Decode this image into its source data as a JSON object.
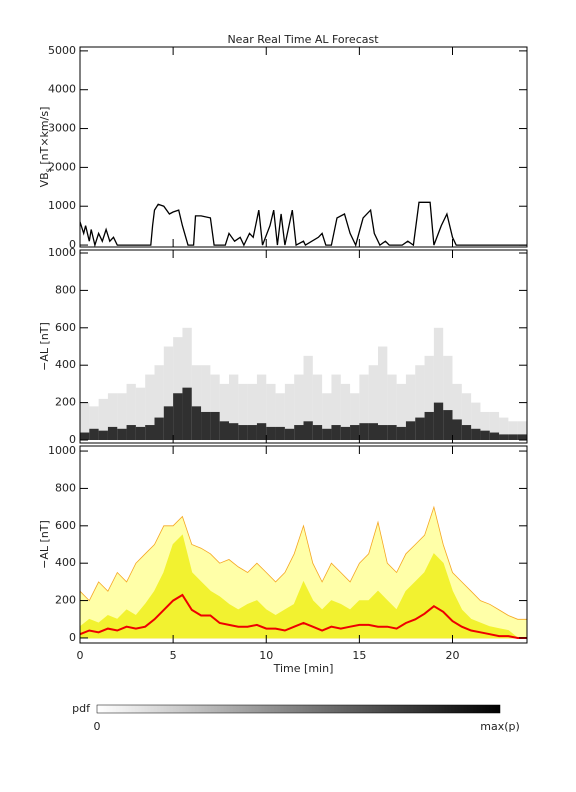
{
  "title": "Near Real Time AL Forecast",
  "colorbar": {
    "label": "pdf",
    "min_label": "0",
    "max_label": "max(p)"
  },
  "chart_data": [
    {
      "type": "line",
      "ylabel": {
        "main": "VB",
        "sub": "s",
        "unit": " [nT×km/s]"
      },
      "xlim": [
        0,
        24
      ],
      "ylim": [
        -50,
        5100
      ],
      "yticks": [
        0,
        1000,
        2000,
        3000,
        4000,
        5000
      ],
      "color": "#000000",
      "x": [
        0,
        0.2,
        0.3,
        0.5,
        0.6,
        0.8,
        1,
        1.2,
        1.4,
        1.6,
        1.8,
        2,
        3,
        3.8,
        3.9,
        4,
        4.2,
        4.5,
        4.8,
        5,
        5.3,
        5.5,
        5.8,
        6.1,
        6.2,
        6.5,
        7,
        7.2,
        7.8,
        8,
        8.3,
        8.6,
        8.8,
        9.1,
        9.3,
        9.6,
        9.8,
        10.2,
        10.4,
        10.6,
        10.8,
        11,
        11.4,
        11.6,
        12,
        12.1,
        12.8,
        13,
        13.2,
        13.5,
        13.8,
        14.2,
        14.5,
        14.8,
        15.2,
        15.6,
        15.8,
        16.1,
        16.4,
        16.6,
        17,
        17.3,
        17.6,
        17.9,
        18.2,
        18.8,
        19,
        19.4,
        19.7,
        20,
        20.2,
        21,
        24
      ],
      "values": [
        600,
        300,
        500,
        100,
        400,
        0,
        300,
        100,
        400,
        100,
        200,
        0,
        0,
        0,
        500,
        900,
        1050,
        1000,
        800,
        850,
        900,
        500,
        0,
        0,
        750,
        750,
        700,
        0,
        0,
        300,
        100,
        200,
        0,
        300,
        200,
        900,
        0,
        500,
        900,
        0,
        800,
        0,
        900,
        0,
        100,
        0,
        200,
        300,
        0,
        0,
        700,
        800,
        300,
        0,
        700,
        900,
        300,
        0,
        100,
        0,
        0,
        0,
        100,
        0,
        1100,
        1100,
        0,
        500,
        800,
        200,
        0,
        0,
        0
      ]
    },
    {
      "type": "heatmap",
      "ylabel": "−AL [nT]",
      "xlim": [
        0,
        24
      ],
      "ylim": [
        -16,
        1016
      ],
      "yticks": [
        0,
        200,
        400,
        600,
        800,
        1000
      ],
      "bins": [
        0,
        0.5,
        1,
        1.5,
        2,
        2.5,
        3,
        3.5,
        4,
        4.5,
        5,
        5.5,
        6,
        6.5,
        7,
        7.5,
        8,
        8.5,
        9,
        9.5,
        10,
        10.5,
        11,
        11.5,
        12,
        12.5,
        13,
        13.5,
        14,
        14.5,
        15,
        15.5,
        16,
        16.5,
        17,
        17.5,
        18,
        18.5,
        19,
        19.5,
        20,
        20.5,
        21,
        21.5,
        22,
        22.5,
        23,
        23.5,
        24
      ],
      "extent": [
        200,
        180,
        220,
        250,
        250,
        300,
        280,
        350,
        400,
        500,
        550,
        600,
        400,
        400,
        350,
        300,
        350,
        300,
        300,
        350,
        300,
        250,
        300,
        350,
        450,
        350,
        250,
        350,
        300,
        250,
        350,
        400,
        500,
        350,
        300,
        350,
        400,
        450,
        600,
        450,
        300,
        250,
        200,
        150,
        150,
        120,
        100,
        100
      ],
      "core": [
        40,
        60,
        50,
        70,
        60,
        80,
        70,
        80,
        120,
        180,
        250,
        280,
        180,
        150,
        150,
        100,
        90,
        80,
        80,
        90,
        70,
        70,
        60,
        80,
        100,
        80,
        60,
        80,
        70,
        80,
        90,
        90,
        80,
        80,
        70,
        100,
        120,
        150,
        200,
        160,
        110,
        80,
        60,
        50,
        40,
        30,
        30,
        30
      ],
      "extent_color": "#d8d8d8",
      "core_color": "#111111"
    },
    {
      "type": "area",
      "ylabel": "−AL [nT]",
      "xlabel": "Time [min]",
      "xlim": [
        0,
        24
      ],
      "ylim": [
        -27,
        1027
      ],
      "yticks": [
        0,
        200,
        400,
        600,
        800,
        1000
      ],
      "xticks": [
        0,
        5,
        10,
        15,
        20
      ],
      "x": [
        0,
        0.5,
        1,
        1.5,
        2,
        2.5,
        3,
        3.5,
        4,
        4.5,
        5,
        5.5,
        6,
        6.5,
        7,
        7.5,
        8,
        8.5,
        9,
        9.5,
        10,
        10.5,
        11,
        11.5,
        12,
        12.5,
        13,
        13.5,
        14,
        14.5,
        15,
        15.5,
        16,
        16.5,
        17,
        17.5,
        18,
        18.5,
        19,
        19.5,
        20,
        20.5,
        21,
        21.5,
        22,
        22.5,
        23,
        23.5,
        24
      ],
      "series": [
        {
          "color": "#ffffa8",
          "stroke": "#f5a623",
          "values": [
            250,
            200,
            300,
            250,
            350,
            300,
            400,
            450,
            500,
            600,
            600,
            650,
            500,
            480,
            450,
            400,
            420,
            380,
            350,
            400,
            350,
            300,
            350,
            450,
            600,
            400,
            300,
            400,
            350,
            300,
            400,
            450,
            620,
            400,
            350,
            450,
            500,
            550,
            700,
            500,
            350,
            300,
            250,
            200,
            180,
            150,
            120,
            100,
            100
          ]
        },
        {
          "color": "#f2f230",
          "stroke": "#f2f230",
          "values": [
            60,
            100,
            80,
            120,
            100,
            150,
            120,
            180,
            250,
            350,
            500,
            550,
            350,
            300,
            250,
            220,
            180,
            150,
            180,
            200,
            150,
            120,
            150,
            180,
            300,
            200,
            150,
            200,
            180,
            150,
            200,
            200,
            250,
            200,
            150,
            250,
            300,
            350,
            450,
            400,
            250,
            150,
            100,
            80,
            60,
            50,
            40,
            0,
            0
          ]
        },
        {
          "color": "#ee0000",
          "values": [
            20,
            40,
            30,
            50,
            40,
            60,
            50,
            60,
            100,
            150,
            200,
            230,
            150,
            120,
            120,
            80,
            70,
            60,
            60,
            70,
            50,
            50,
            40,
            60,
            80,
            60,
            40,
            60,
            50,
            60,
            70,
            70,
            60,
            60,
            50,
            80,
            100,
            130,
            170,
            140,
            90,
            60,
            40,
            30,
            20,
            10,
            10,
            0,
            0
          ]
        }
      ]
    }
  ]
}
